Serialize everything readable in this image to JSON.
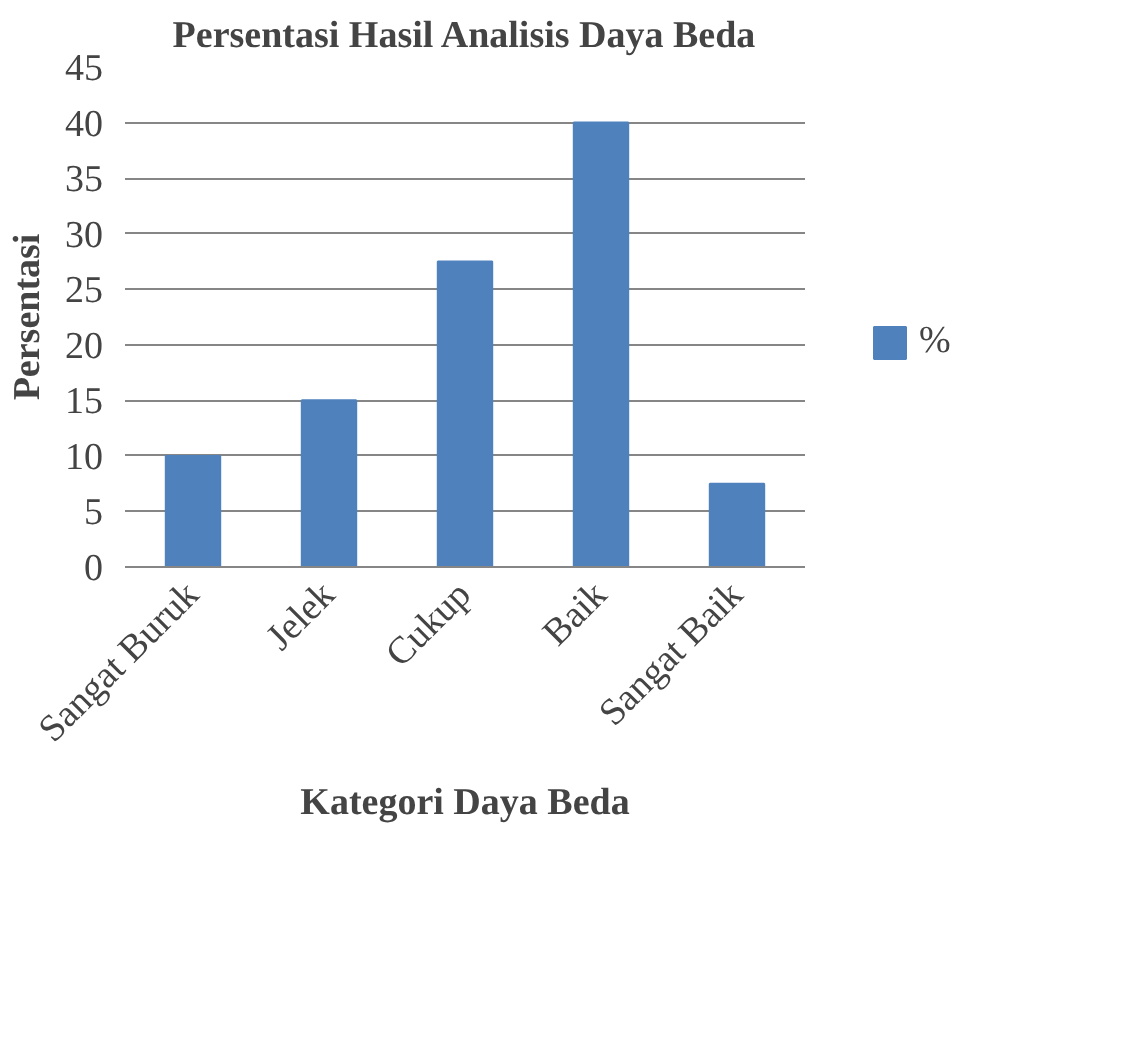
{
  "chart_data": {
    "type": "bar",
    "title": "Persentasi Hasil Analisis Daya Beda",
    "xlabel": "Kategori Daya Beda",
    "ylabel": "Persentasi",
    "categories": [
      "Sangat Buruk",
      "Jelek",
      "Cukup",
      "Baik",
      "Sangat Baik"
    ],
    "series": [
      {
        "name": "%",
        "color": "#4f81bd",
        "values": [
          10,
          15,
          27.5,
          40,
          7.5
        ]
      }
    ],
    "ylim": [
      0,
      45
    ],
    "yticks": [
      0,
      5,
      10,
      15,
      20,
      25,
      30,
      35,
      40,
      45
    ],
    "grid": "y",
    "legend": "right"
  }
}
